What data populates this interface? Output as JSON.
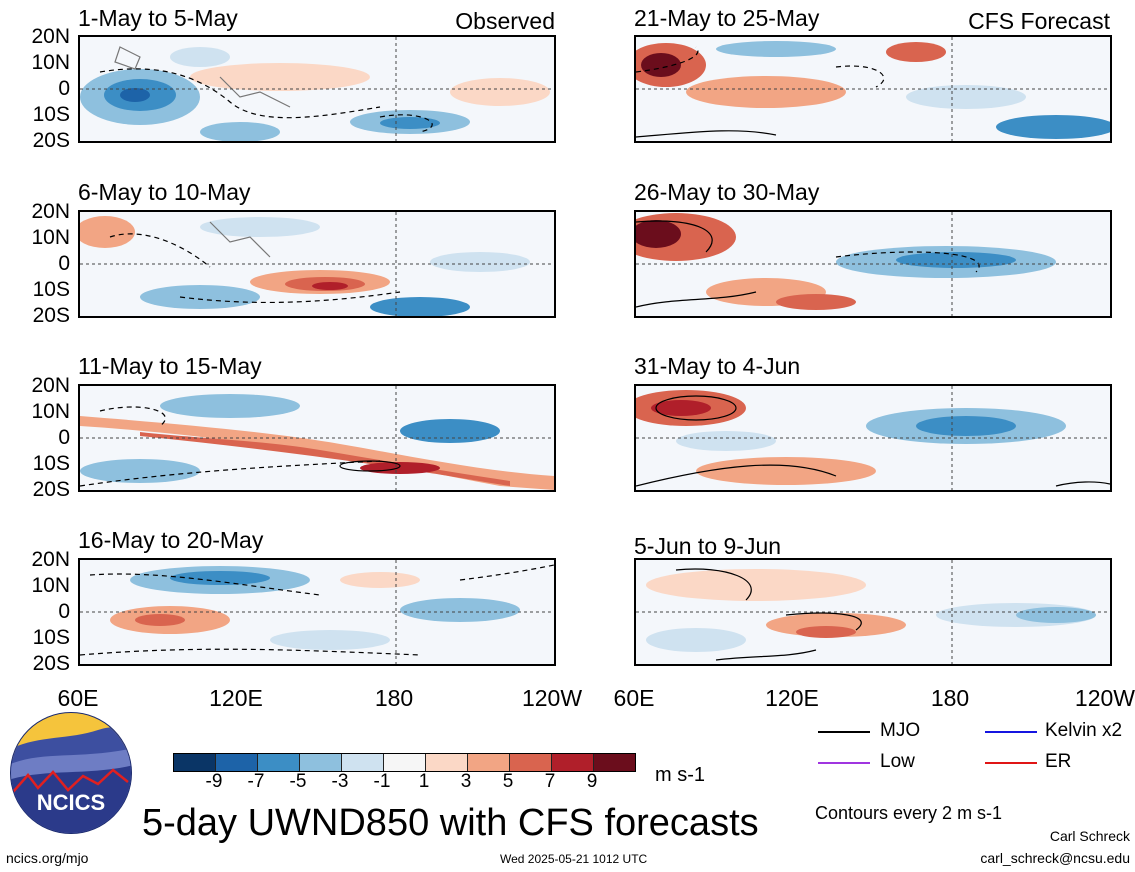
{
  "section_labels": {
    "observed": "Observed",
    "forecast": "CFS Forecast"
  },
  "left_panels": [
    {
      "title": "1-May to 5-May"
    },
    {
      "title": "6-May to 10-May"
    },
    {
      "title": "11-May to 15-May"
    },
    {
      "title": "16-May to 20-May"
    }
  ],
  "right_panels": [
    {
      "title": "21-May to 25-May"
    },
    {
      "title": "26-May to 30-May"
    },
    {
      "title": "31-May to 4-Jun"
    },
    {
      "title": "5-Jun to 9-Jun"
    }
  ],
  "lat_labels": [
    "20N",
    "10N",
    "0",
    "10S",
    "20S"
  ],
  "lon_labels": [
    "60E",
    "120E",
    "180",
    "120W"
  ],
  "colorbar": {
    "colors": [
      "#0a3566",
      "#1d63a8",
      "#3c8ec5",
      "#8ec0de",
      "#cfe2f0",
      "#f6f6f6",
      "#fbd8c6",
      "#f2a584",
      "#d9644f",
      "#b01f2a",
      "#6b0d1c"
    ],
    "labels": [
      "-9",
      "-7",
      "-5",
      "-3",
      "-1",
      "1",
      "3",
      "5",
      "7",
      "9"
    ],
    "unit": "m s-1"
  },
  "legend": {
    "items": [
      {
        "label": "MJO",
        "color": "#000000"
      },
      {
        "label": "Kelvin x2",
        "color": "#1515e0"
      },
      {
        "label": "Low",
        "color": "#a035e0"
      },
      {
        "label": "ER",
        "color": "#e01515"
      }
    ],
    "contours_note": "Contours every 2 m s-1"
  },
  "logo": {
    "text": "NCICS"
  },
  "main_title": "5-day UWND850 with CFS forecasts",
  "footer": {
    "url": "ncics.org/mjo",
    "timestamp": "Wed 2025-05-21 1012 UTC",
    "author": "Carl Schreck",
    "email": "carl_schreck@ncsu.edu"
  }
}
